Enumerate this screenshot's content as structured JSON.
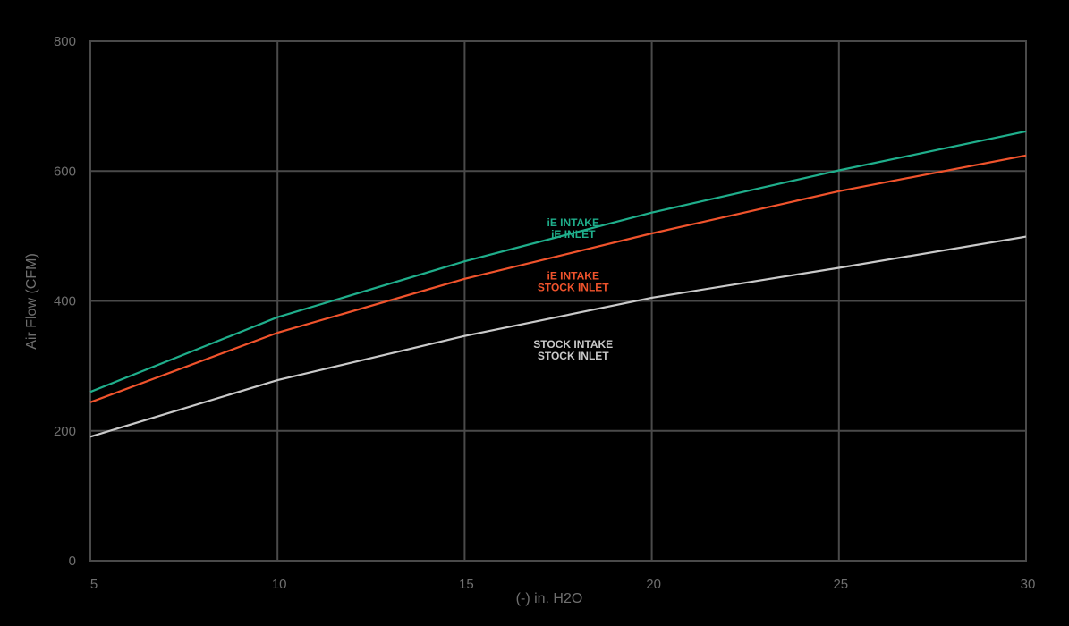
{
  "chart_data": {
    "type": "line",
    "title": "",
    "xlabel": "(-) in. H2O",
    "ylabel": "Air Flow (CFM)",
    "xlim": [
      5,
      30
    ],
    "ylim": [
      0,
      800
    ],
    "xticks": [
      5,
      10,
      15,
      20,
      25,
      30
    ],
    "yticks": [
      0,
      200,
      400,
      600,
      800
    ],
    "grid": true,
    "colors": {
      "background": "#000000",
      "grid": "#4a4a4a",
      "tick_text": "#6f6f6f"
    },
    "series": [
      {
        "label_lines": [
          "iE INTAKE",
          "iE INLET"
        ],
        "color": "#1fae8b",
        "label_at": [
          17.9,
          515
        ],
        "x": [
          5,
          10,
          15,
          20,
          25,
          30
        ],
        "y": [
          260,
          375,
          461,
          536,
          601,
          661
        ]
      },
      {
        "label_lines": [
          "iE INTAKE",
          "STOCK INLET"
        ],
        "color": "#f0532c",
        "label_at": [
          17.9,
          433
        ],
        "x": [
          5,
          10,
          15,
          20,
          25,
          30
        ],
        "y": [
          244,
          351,
          434,
          504,
          569,
          624
        ]
      },
      {
        "label_lines": [
          "STOCK INTAKE",
          "STOCK INLET"
        ],
        "color": "#c9c9c9",
        "label_at": [
          17.9,
          328
        ],
        "x": [
          5,
          10,
          15,
          20,
          25,
          30
        ],
        "y": [
          191,
          278,
          346,
          405,
          451,
          499
        ]
      }
    ]
  }
}
